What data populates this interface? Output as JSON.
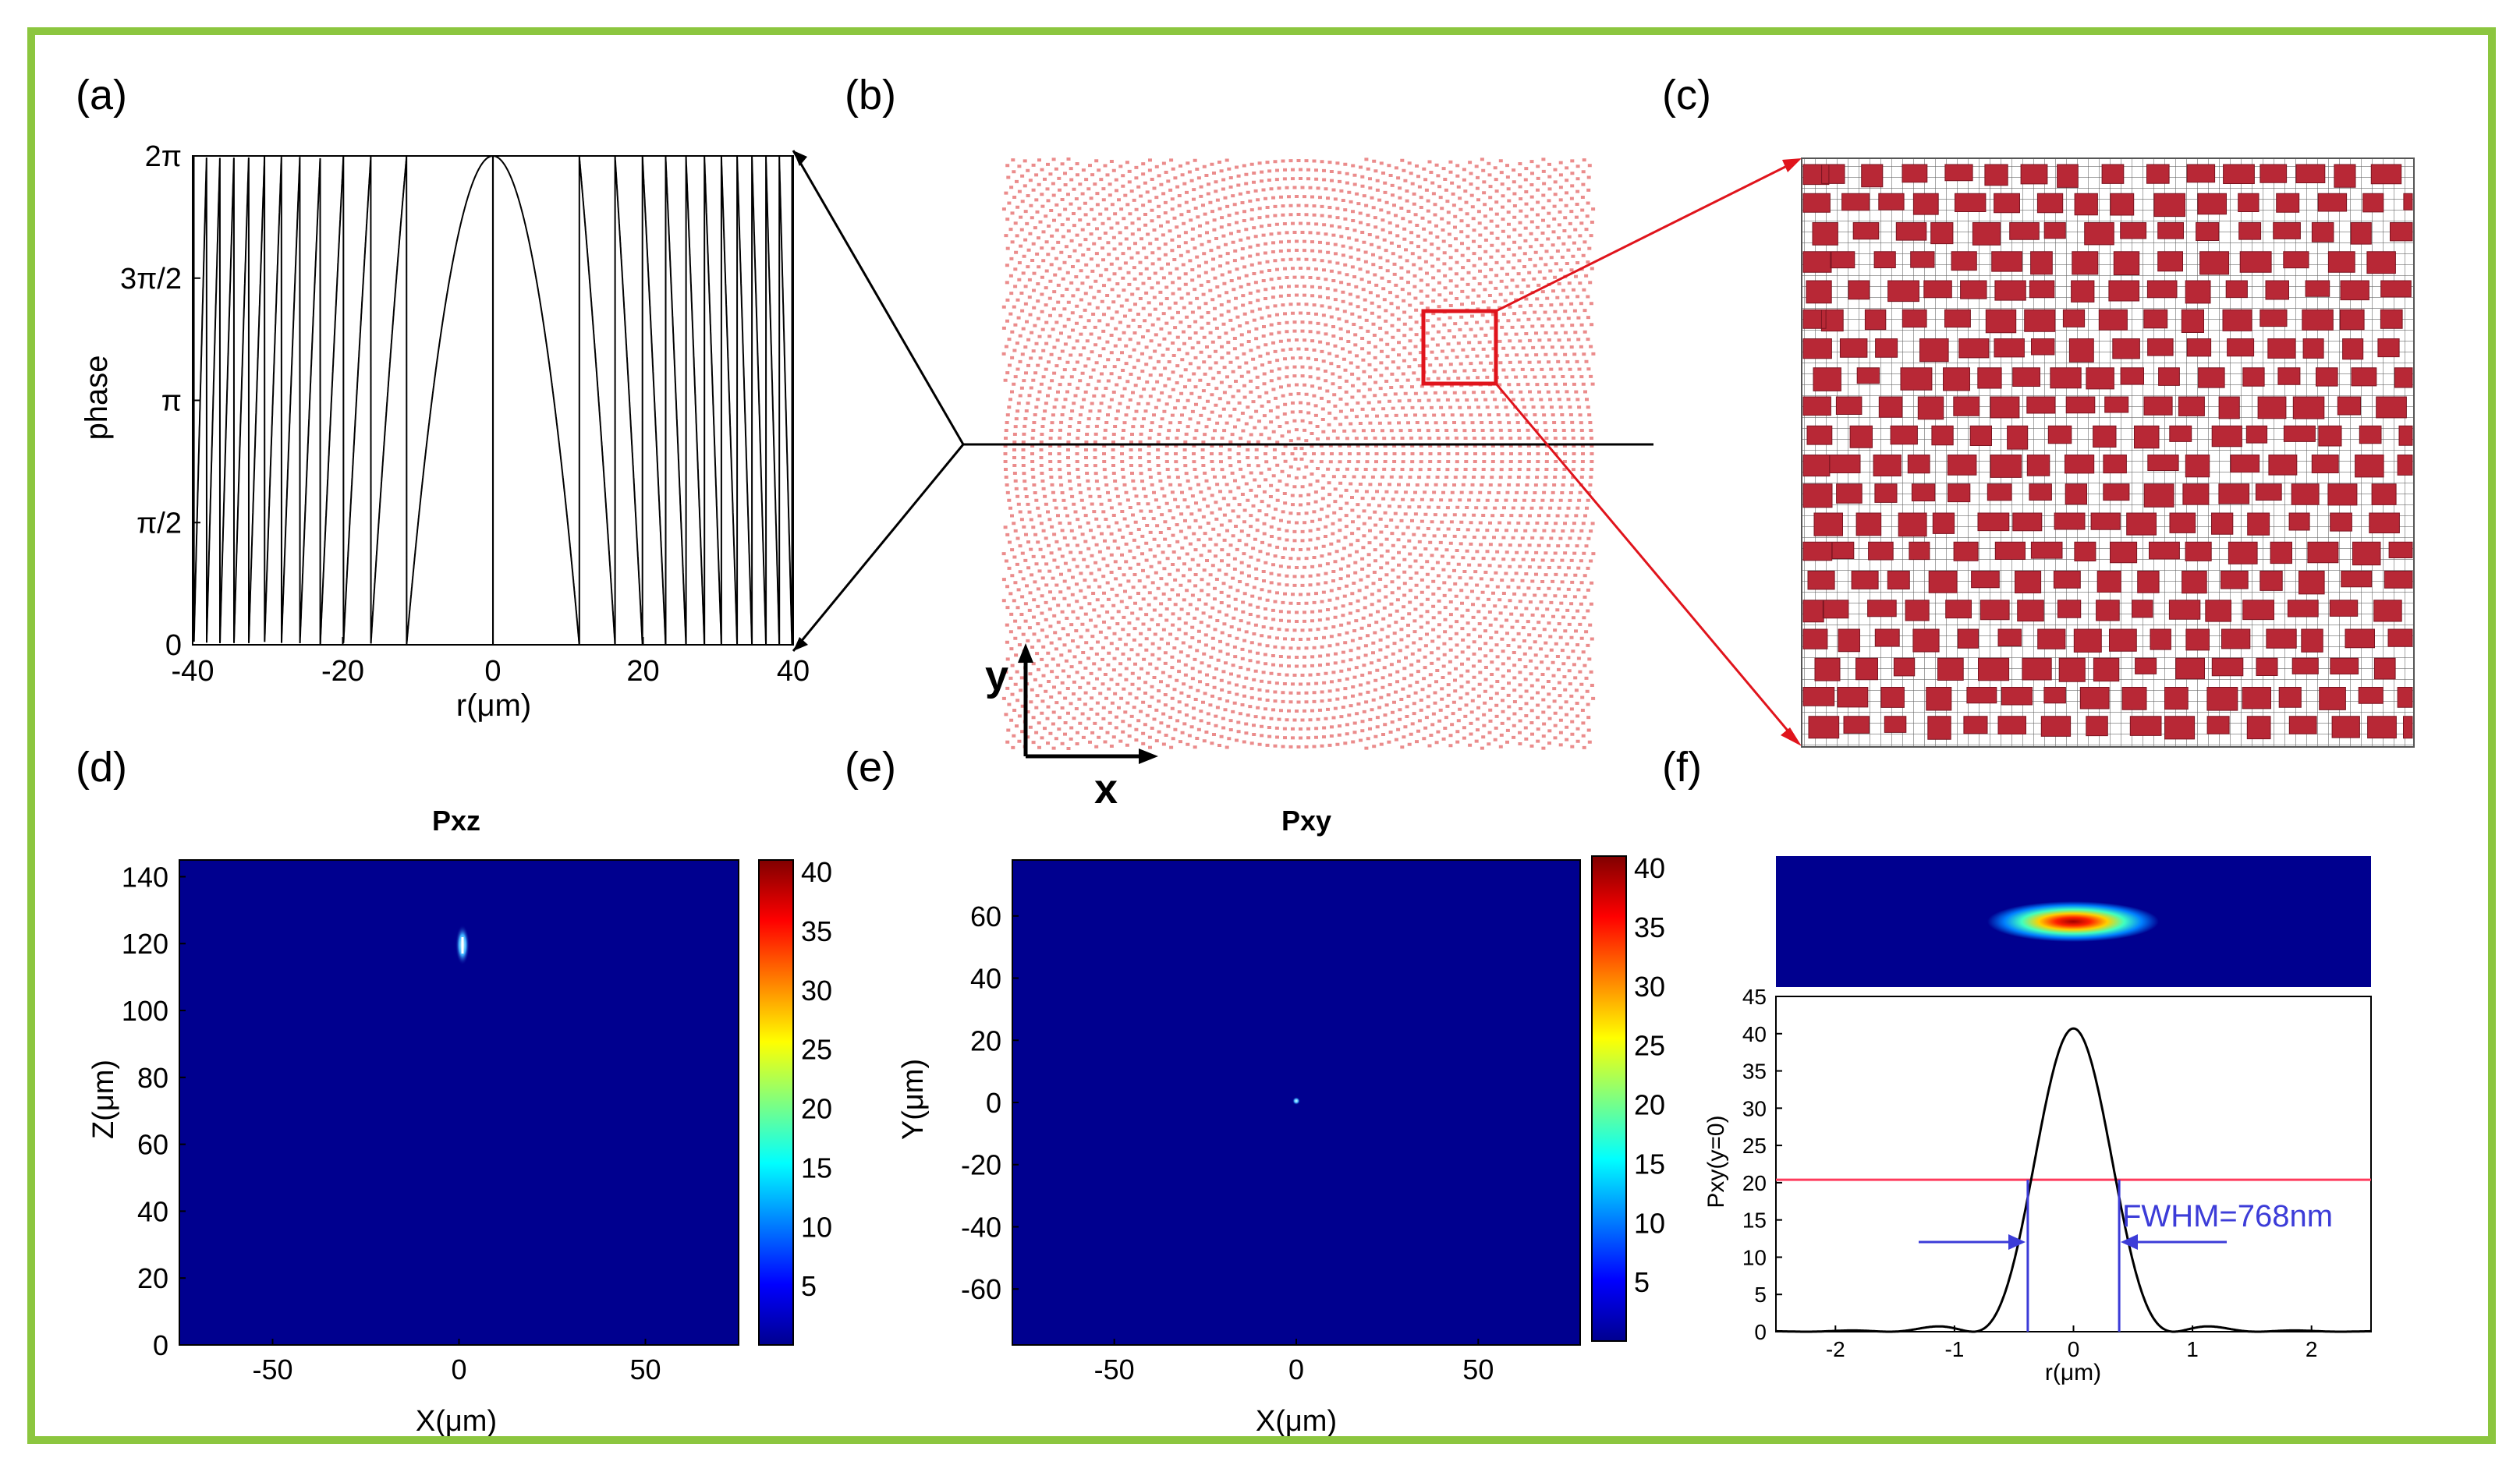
{
  "border_color": "#8cc63f",
  "panels": {
    "a": {
      "label": "(a)",
      "ylabel": "phase",
      "xlabel": "r(μm)",
      "yticks": [
        "0",
        "π/2",
        "π",
        "3π/2",
        "2π"
      ],
      "xticks": [
        "-40",
        "-20",
        "0",
        "20",
        "40"
      ]
    },
    "b": {
      "label": "(b)",
      "x_axis": "x",
      "y_axis": "y"
    },
    "c": {
      "label": "(c)"
    },
    "d": {
      "label": "(d)",
      "title": "Pxz",
      "xlabel": "X(μm)",
      "ylabel": "Z(μm)",
      "xticks": [
        "-50",
        "0",
        "50"
      ],
      "yticks": [
        "0",
        "20",
        "40",
        "60",
        "80",
        "100",
        "120",
        "140"
      ],
      "colorbar_ticks": [
        "5",
        "10",
        "15",
        "20",
        "25",
        "30",
        "35",
        "40"
      ]
    },
    "e": {
      "label": "(e)",
      "title": "Pxy",
      "xlabel": "X(μm)",
      "ylabel": "Y(μm)",
      "xticks": [
        "-50",
        "0",
        "50"
      ],
      "yticks": [
        "-60",
        "-40",
        "-20",
        "0",
        "20",
        "40",
        "60"
      ],
      "colorbar_ticks": [
        "5",
        "10",
        "15",
        "20",
        "25",
        "30",
        "35",
        "40"
      ]
    },
    "f": {
      "label": "(f)",
      "xlabel": "r(μm)",
      "ylabel": "Pxy(y=0)",
      "xticks": [
        "-2",
        "-1",
        "0",
        "1",
        "2"
      ],
      "yticks": [
        "0",
        "5",
        "10",
        "15",
        "20",
        "25",
        "30",
        "35",
        "40",
        "45"
      ],
      "annotation": "FWHM=768nm"
    }
  },
  "chart_data": [
    {
      "id": "a",
      "type": "line",
      "title": "",
      "xlabel": "r(μm)",
      "ylabel": "phase",
      "xlim": [
        -40,
        40
      ],
      "ylim": [
        0,
        6.283
      ],
      "description_series": "phase = mod(-k*r^2 ... , 2π); central parabola peak 2π at r=0, wraps near r=±11.5",
      "series": [
        {
          "name": "phase",
          "peak_x": 0,
          "peak_y": 6.283,
          "first_wrap_r": 11.5
        }
      ]
    },
    {
      "id": "d",
      "type": "heatmap",
      "title": "Pxz",
      "xlabel": "X(μm)",
      "ylabel": "Z(μm)",
      "xlim": [
        -75,
        75
      ],
      "ylim": [
        0,
        145
      ],
      "clim": [
        0,
        40
      ],
      "hotspot": {
        "x": 0,
        "z": 114
      }
    },
    {
      "id": "e",
      "type": "heatmap",
      "title": "Pxy",
      "xlabel": "X(μm)",
      "ylabel": "Y(μm)",
      "xlim": [
        -78,
        78
      ],
      "ylim": [
        -78,
        78
      ],
      "clim": [
        0,
        40
      ],
      "hotspot": {
        "x": 0,
        "y": 0
      }
    },
    {
      "id": "f",
      "type": "line",
      "title": "",
      "xlabel": "r(μm)",
      "ylabel": "Pxy(y=0)",
      "xlim": [
        -2.5,
        2.5
      ],
      "ylim": [
        0,
        45
      ],
      "series": [
        {
          "name": "Pxy(y=0)",
          "peak": 40.7,
          "fwhm_um": 0.768
        }
      ],
      "half_max_line": 20.4,
      "annotation": "FWHM=768nm"
    }
  ]
}
